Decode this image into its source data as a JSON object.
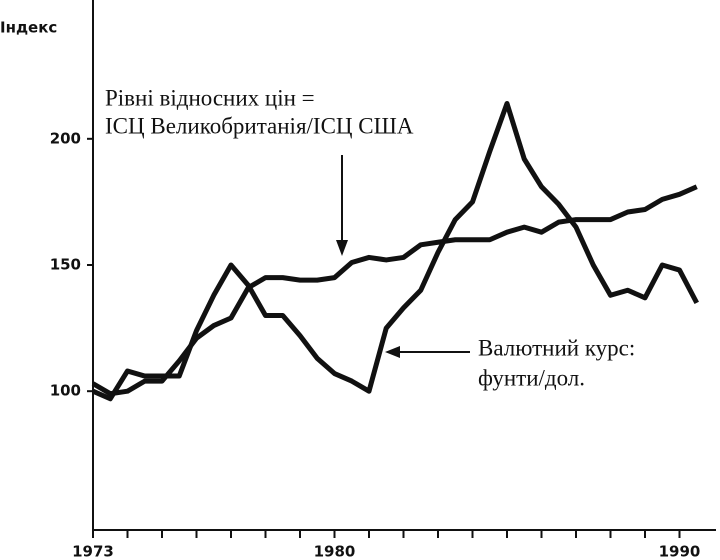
{
  "chart_data": {
    "type": "line",
    "ylabel": "Індекс",
    "x": [
      1973,
      1973.5,
      1974,
      1974.5,
      1975,
      1975.5,
      1976,
      1976.5,
      1977,
      1977.5,
      1978,
      1978.5,
      1979,
      1979.5,
      1980,
      1980.5,
      1981,
      1981.5,
      1982,
      1982.5,
      1983,
      1983.5,
      1984,
      1984.5,
      1985,
      1985.5,
      1986,
      1986.5,
      1987,
      1987.5,
      1988,
      1988.5,
      1989,
      1989.5,
      1990,
      1990.5
    ],
    "series": [
      {
        "color": "#111111",
        "values": [
          103,
          99,
          100,
          104,
          104,
          112,
          121,
          126,
          129,
          141,
          145,
          145,
          144,
          144,
          145,
          151,
          153,
          152,
          153,
          158,
          159,
          160,
          160,
          160,
          163,
          165,
          163,
          167,
          168,
          168,
          168,
          171,
          172,
          176,
          178,
          181
        ]
      },
      {
        "color": "#111111",
        "values": [
          100,
          97,
          108,
          106,
          106,
          106,
          124,
          138,
          150,
          142,
          130,
          130,
          122,
          113,
          107,
          104,
          100,
          125,
          133,
          140,
          155,
          168,
          175,
          195,
          214,
          192,
          181,
          174,
          165,
          150,
          138,
          140,
          137,
          150,
          148,
          135
        ]
      }
    ],
    "xlim": [
      1973,
      1991
    ],
    "xticks": [
      1973,
      1980,
      1990
    ],
    "xminorticks": [
      1974,
      1975,
      1976,
      1977,
      1978,
      1979,
      1981,
      1982,
      1983,
      1984,
      1985,
      1986,
      1987,
      1988,
      1989
    ],
    "ylim": [
      45,
      255
    ],
    "yticks": [
      100,
      150,
      200
    ],
    "annotations": [
      {
        "lines": [
          "Рівні відносних цін =",
          "ІСЦ Великобританія/ІСЦ США"
        ]
      },
      {
        "lines": [
          "Валютний курс:",
          "фунти/дол."
        ]
      }
    ]
  }
}
